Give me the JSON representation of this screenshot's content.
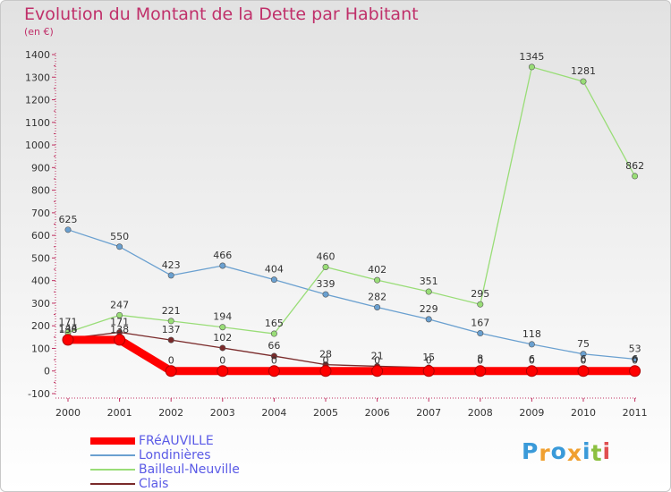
{
  "chart_data": {
    "type": "line",
    "title": "Evolution du Montant de la Dette par Habitant",
    "subtitle": "(en €)",
    "x": [
      "2000",
      "2001",
      "2002",
      "2003",
      "2004",
      "2005",
      "2006",
      "2007",
      "2008",
      "2009",
      "2010",
      "2011"
    ],
    "ylim": [
      -100,
      1400
    ],
    "yticks": [
      -100,
      0,
      100,
      200,
      300,
      400,
      500,
      600,
      700,
      800,
      900,
      1000,
      1100,
      1200,
      1300,
      1400
    ],
    "grid": false,
    "legend_position": "bottom-left",
    "series": [
      {
        "name": "FRéAUVILLE",
        "color": "#ff0000",
        "values": [
          138,
          138,
          0,
          0,
          0,
          0,
          0,
          0,
          0,
          0,
          0,
          0
        ],
        "labels": [
          "138",
          "138",
          "0",
          "0",
          "0",
          "0",
          "0",
          "0",
          "0",
          "0",
          "0",
          "0"
        ]
      },
      {
        "name": "Londinières",
        "color": "#6aa0d0",
        "values": [
          625,
          550,
          423,
          466,
          404,
          339,
          282,
          229,
          167,
          118,
          75,
          53
        ],
        "labels": [
          "625",
          "550",
          "423",
          "466",
          "404",
          "339",
          "282",
          "229",
          "167",
          "118",
          "75",
          "53"
        ]
      },
      {
        "name": "Bailleul-Neuville",
        "color": "#99dd77",
        "values": [
          171,
          247,
          221,
          194,
          165,
          460,
          402,
          351,
          295,
          1345,
          1281,
          862
        ],
        "labels": [
          "171",
          "247",
          "221",
          "194",
          "165",
          "460",
          "402",
          "351",
          "295",
          "1345",
          "1281",
          "862"
        ]
      },
      {
        "name": "Clais",
        "color": "#7a2a2a",
        "values": [
          144,
          171,
          137,
          102,
          66,
          28,
          21,
          15,
          8,
          6,
          6,
          6
        ],
        "labels": [
          "144",
          "171",
          "137",
          "102",
          "66",
          "28",
          "21",
          "15",
          "8",
          "6",
          "6",
          "6"
        ]
      }
    ]
  },
  "logo": {
    "letters": [
      "P",
      "r",
      "o",
      "x",
      "i",
      "t",
      "i"
    ],
    "colors": [
      "#3a9ad9",
      "#f0a030",
      "#3a9ad9",
      "#f0a030",
      "#3a9ad9",
      "#8cc040",
      "#e05050"
    ]
  }
}
